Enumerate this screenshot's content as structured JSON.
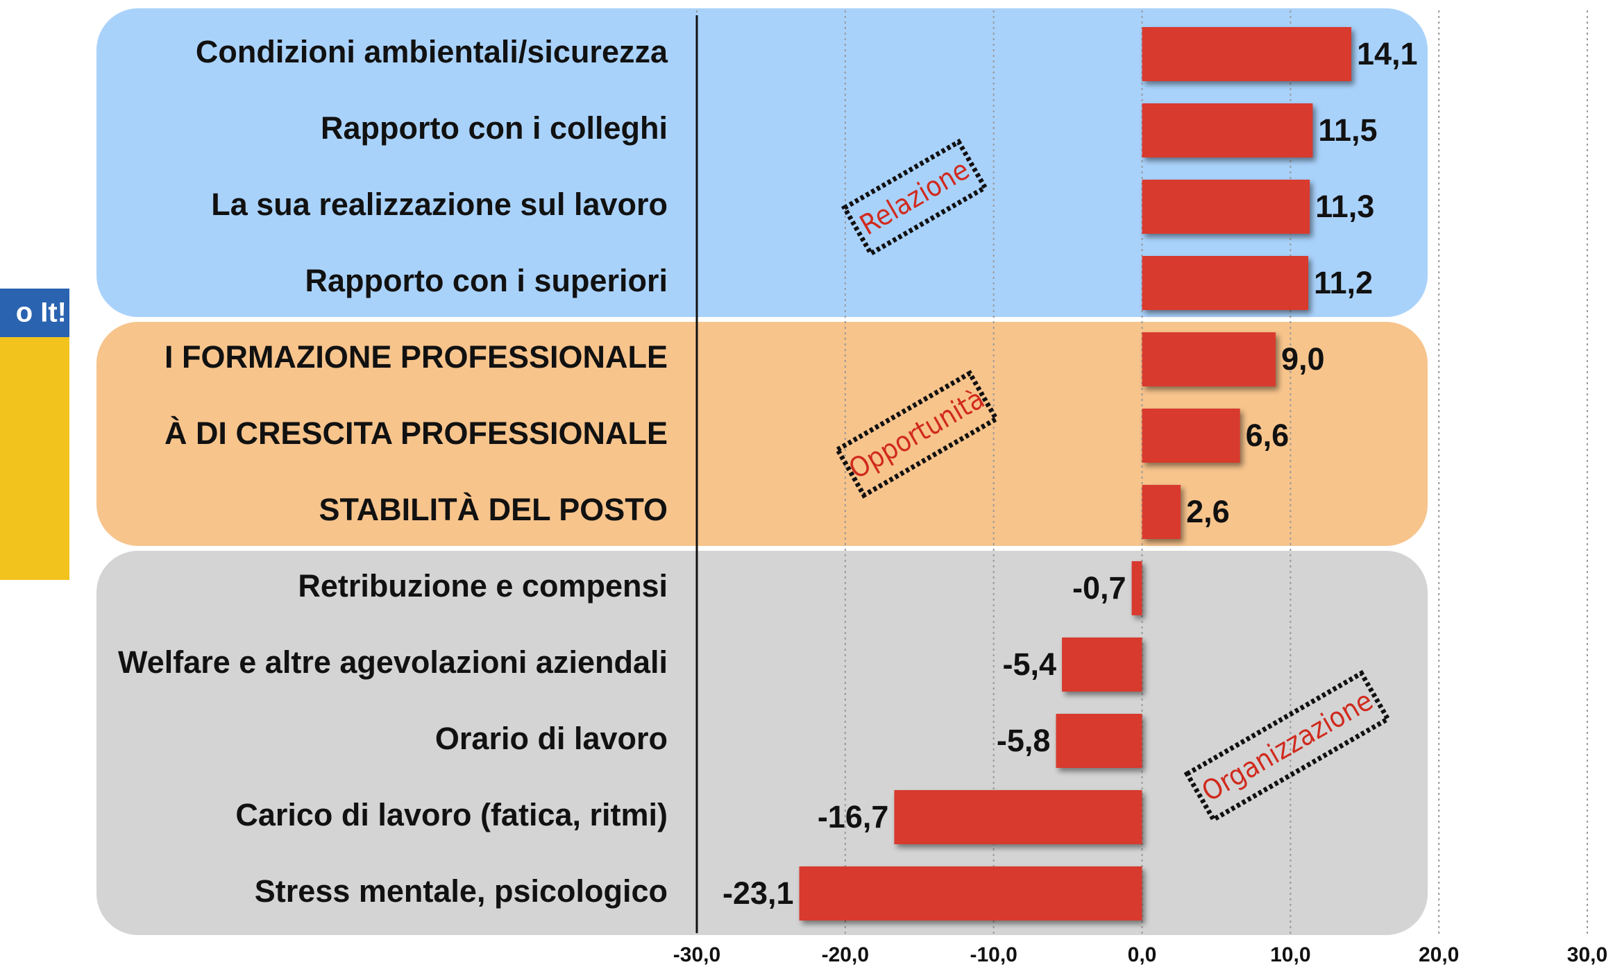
{
  "chart_data": {
    "type": "barh",
    "categories": [
      "Condizioni ambientali/sicurezza",
      "Rapporto con i colleghi",
      "La sua realizzazione sul lavoro",
      "Rapporto con i superiori",
      "I FORMAZIONE PROFESSIONALE",
      "À DI CRESCITA PROFESSIONALE",
      "STABILITÀ DEL POSTO",
      "Retribuzione e compensi",
      "Welfare e altre agevolazioni aziendali",
      "Orario di lavoro",
      "Carico di lavoro (fatica, ritmi)",
      "Stress mentale, psicologico"
    ],
    "values": [
      14.1,
      11.5,
      11.3,
      11.2,
      9.0,
      6.6,
      2.6,
      -0.7,
      -5.4,
      -5.8,
      -16.7,
      -23.1
    ],
    "value_labels": [
      "14,1",
      "11,5",
      "11,3",
      "11,2",
      "9,0",
      "6,6",
      "2,6",
      "-0,7",
      "-5,4",
      "-5,8",
      "-16,7",
      "-23,1"
    ],
    "color": "#d83a2e",
    "xlim": [
      -30,
      30
    ],
    "xticks": [
      {
        "value": -30,
        "label": "-30,0"
      },
      {
        "value": -20,
        "label": "-20,0"
      },
      {
        "value": -10,
        "label": "-10,0"
      },
      {
        "value": 0,
        "label": "0,0"
      },
      {
        "value": 10,
        "label": "10,0"
      },
      {
        "value": 20,
        "label": "20,0"
      },
      {
        "value": 30,
        "label": "30,0"
      }
    ],
    "grid": true,
    "groups": [
      {
        "name": "Relazione",
        "color": "#a9d2fb"
      },
      {
        "name": "Opportunità",
        "color": "#f7c48c"
      },
      {
        "name": "Organizzazione",
        "color": "#d4d4d4"
      }
    ],
    "poster_text": "o It!"
  }
}
